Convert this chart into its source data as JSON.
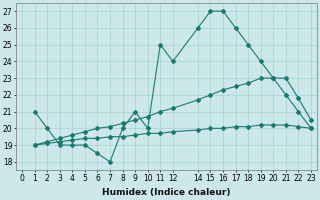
{
  "line1_x": [
    1,
    2,
    3,
    4,
    5,
    6,
    7,
    8,
    9,
    10,
    11,
    12,
    14,
    15,
    16,
    17,
    18,
    19,
    20,
    21,
    22,
    23
  ],
  "line1_y": [
    21,
    20,
    19,
    19,
    19,
    18.5,
    18,
    20,
    21,
    20,
    25,
    24,
    26,
    27,
    27,
    26,
    25,
    24,
    23,
    22,
    21,
    20
  ],
  "line2_x": [
    1,
    2,
    3,
    4,
    5,
    6,
    7,
    8,
    9,
    10,
    11,
    12,
    14,
    15,
    16,
    17,
    18,
    19,
    20,
    21,
    22,
    23
  ],
  "line2_y": [
    19,
    19.2,
    19.4,
    19.6,
    19.8,
    20.0,
    20.1,
    20.3,
    20.5,
    20.7,
    21.0,
    21.2,
    21.7,
    22.0,
    22.3,
    22.5,
    22.7,
    23.0,
    23.0,
    23.0,
    21.8,
    20.5
  ],
  "line3_x": [
    1,
    2,
    3,
    4,
    5,
    6,
    7,
    8,
    9,
    10,
    11,
    12,
    14,
    15,
    16,
    17,
    18,
    19,
    20,
    21,
    22,
    23
  ],
  "line3_y": [
    19,
    19.1,
    19.2,
    19.3,
    19.4,
    19.4,
    19.5,
    19.5,
    19.6,
    19.7,
    19.7,
    19.8,
    19.9,
    20.0,
    20.0,
    20.1,
    20.1,
    20.2,
    20.2,
    20.2,
    20.1,
    20.0
  ],
  "color": "#1a7a6e",
  "bg_color": "#cde8ea",
  "grid_color": "#aad0d4",
  "xlabel": "Humidex (Indice chaleur)",
  "ylim": [
    17.5,
    27.5
  ],
  "xlim": [
    -0.5,
    23.5
  ],
  "yticks": [
    18,
    19,
    20,
    21,
    22,
    23,
    24,
    25,
    26,
    27
  ],
  "xticks": [
    0,
    1,
    2,
    3,
    4,
    5,
    6,
    7,
    8,
    9,
    10,
    11,
    12,
    14,
    15,
    16,
    17,
    18,
    19,
    20,
    21,
    22,
    23
  ]
}
